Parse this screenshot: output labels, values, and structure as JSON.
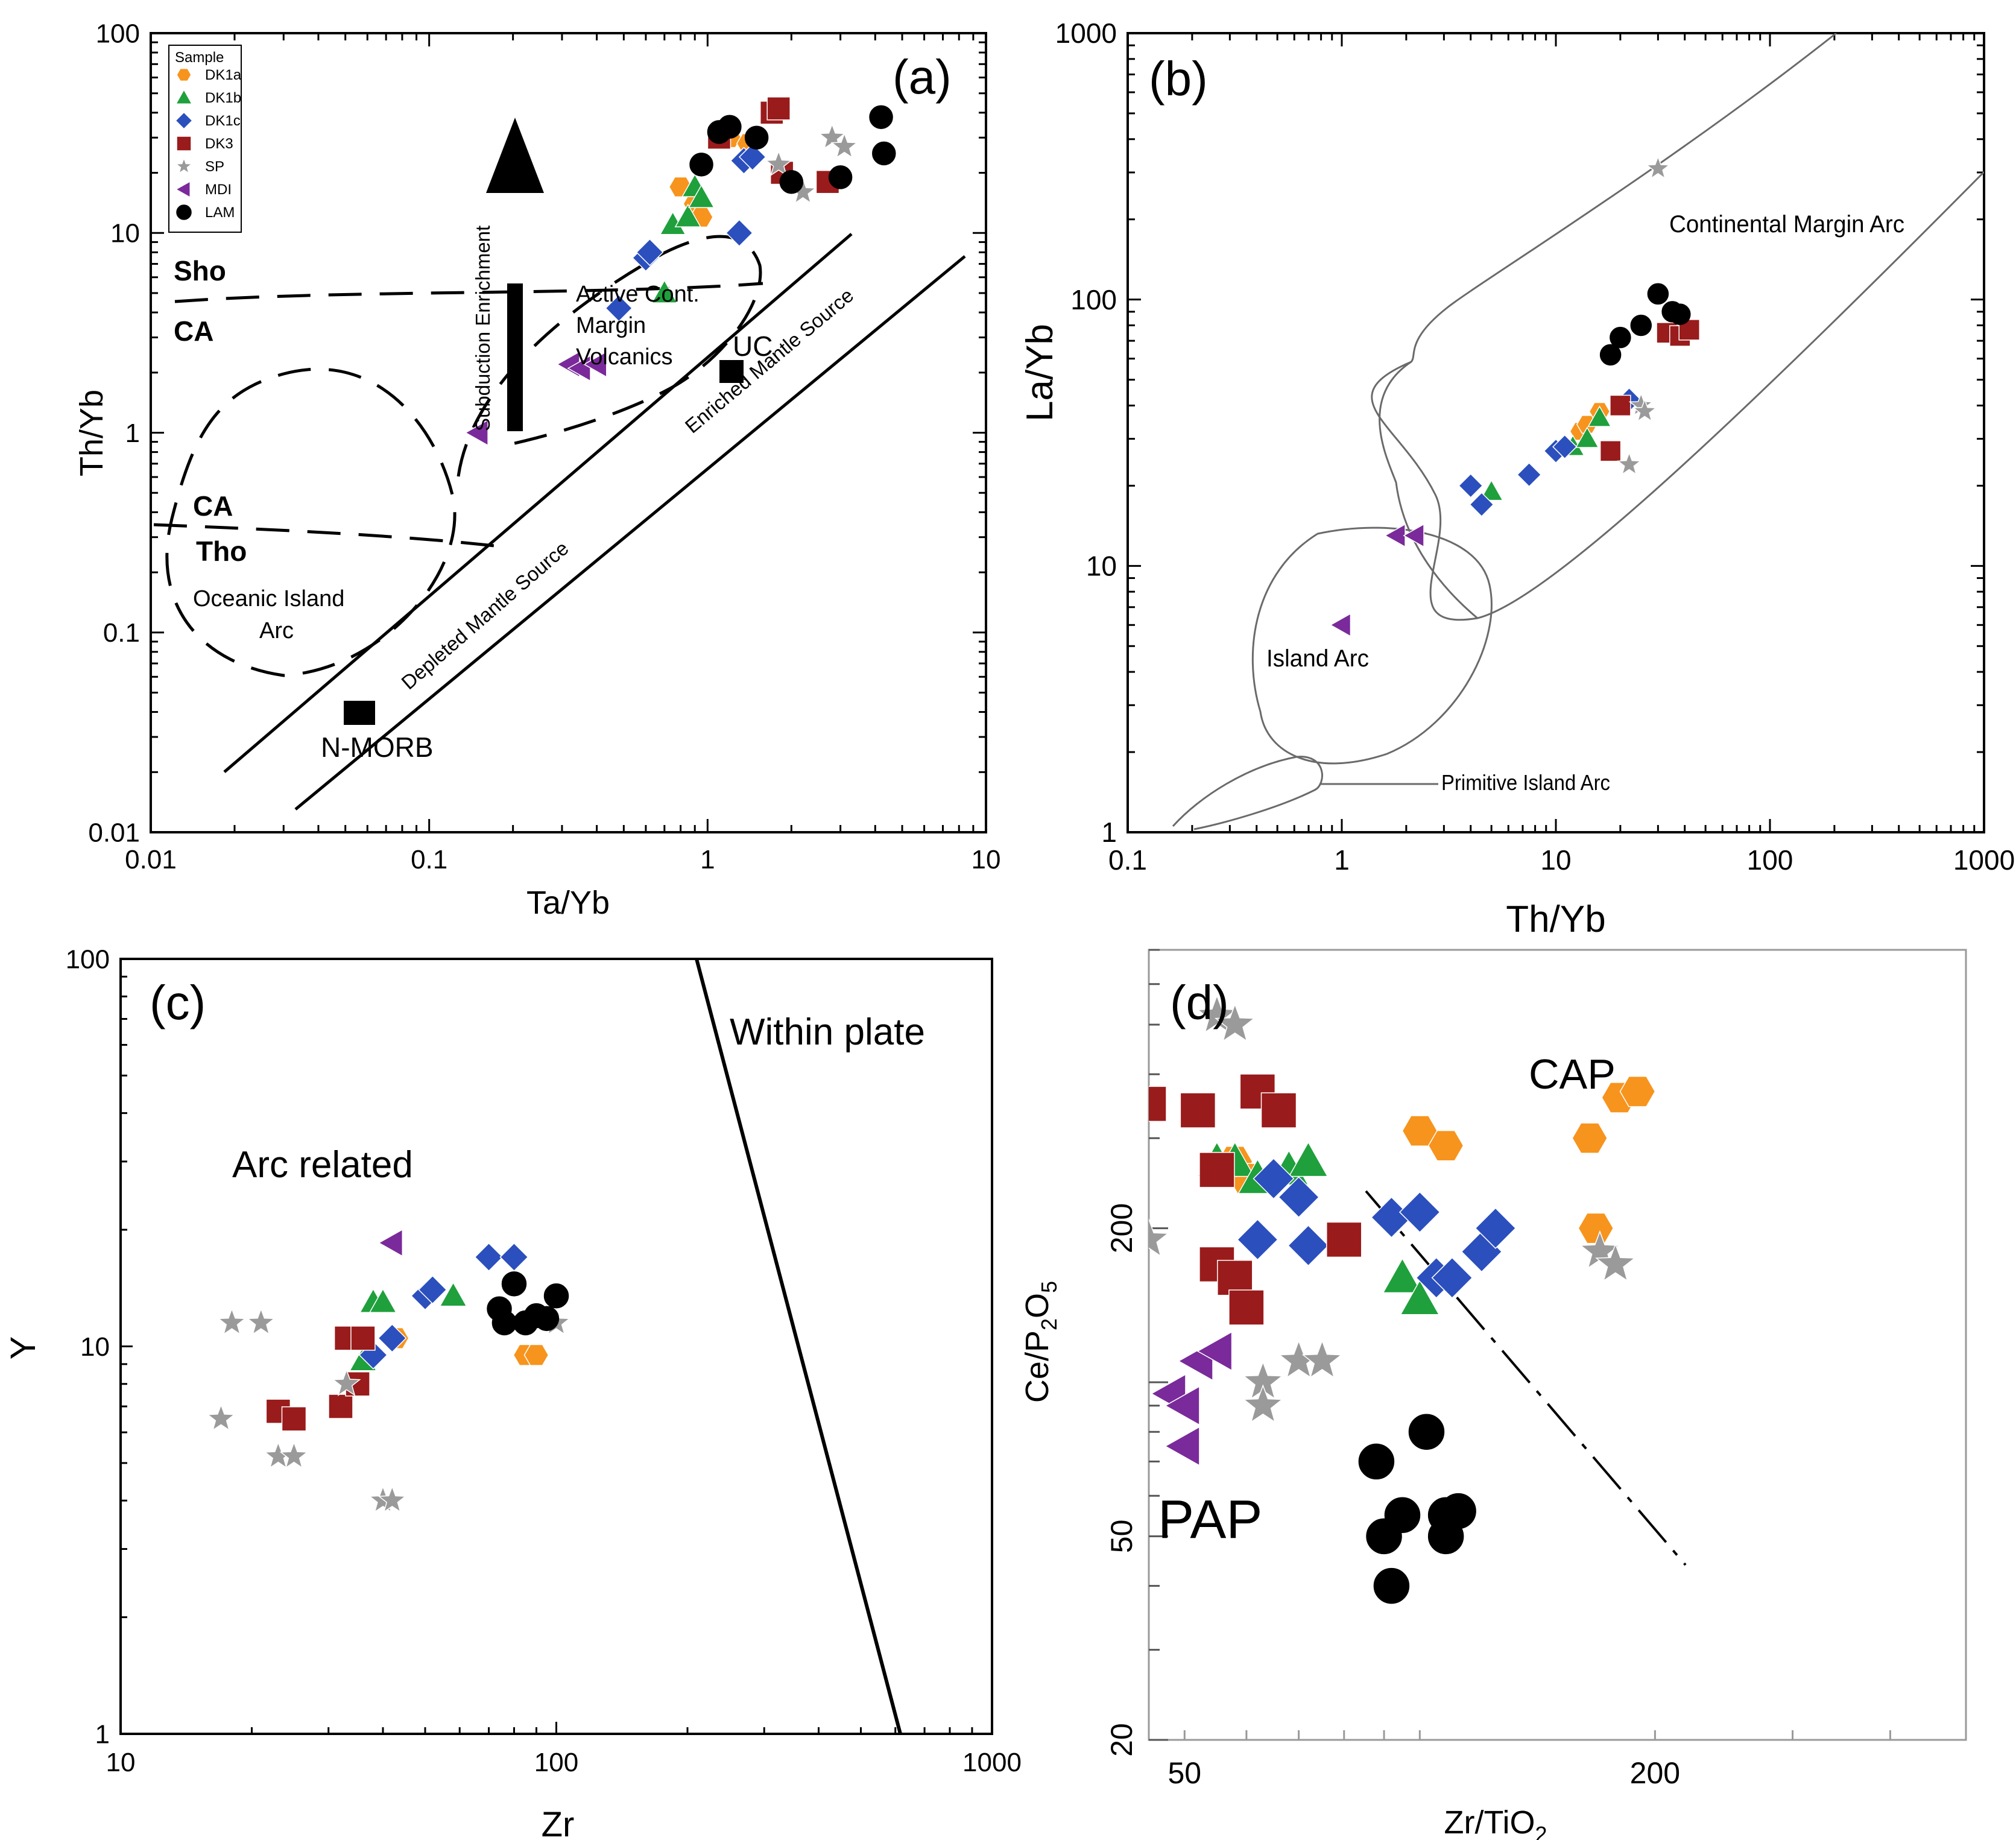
{
  "panels": {
    "a": {
      "label": "(a)",
      "xlabel": "Ta/Yb",
      "ylabel": "Th/Yb",
      "xticks": [
        "0.01",
        "0.1",
        "1",
        "10"
      ],
      "yticks": [
        "0.01",
        "0.1",
        "1",
        "10",
        "100"
      ],
      "legend_title": "Sample",
      "legend": [
        {
          "name": "DK1a",
          "color": "#f7941d",
          "shape": "hexagon"
        },
        {
          "name": "DK1b",
          "color": "#1fa03c",
          "shape": "triangle"
        },
        {
          "name": "DK1c",
          "color": "#2b4fbd",
          "shape": "diamond"
        },
        {
          "name": "DK3",
          "color": "#9a1b1b",
          "shape": "square"
        },
        {
          "name": "SP",
          "color": "#9a9a9a",
          "shape": "star"
        },
        {
          "name": "MDI",
          "color": "#7a2a9a",
          "shape": "triangle-left"
        },
        {
          "name": "LAM",
          "color": "#000000",
          "shape": "circle"
        }
      ],
      "labels": {
        "sho": "Sho",
        "ca_top": "CA",
        "ca_bot": "CA",
        "tho": "Tho",
        "oia1": "Oceanic Island",
        "oia2": "Arc",
        "acm1": "Active Cont.",
        "acm2": "Margin",
        "acm3": "Volcanics",
        "sub": "Subduction Enrichment",
        "dms": "Depleted Mantle Source",
        "ems": "Enriched Mantle Source",
        "nmorb": "N-MORB",
        "uc": "UC"
      }
    },
    "b": {
      "label": "(b)",
      "xlabel": "Th/Yb",
      "ylabel": "La/Yb",
      "xticks": [
        "0.1",
        "1",
        "10",
        "100",
        "1000"
      ],
      "yticks": [
        "1",
        "10",
        "100",
        "1000"
      ],
      "labels": {
        "cma": "Continental Margin Arc",
        "ia": "Island Arc",
        "pia": "Primitive Island Arc"
      }
    },
    "c": {
      "label": "(c)",
      "xlabel": "Zr",
      "ylabel": "Y",
      "xticks": [
        "10",
        "100",
        "1000"
      ],
      "yticks": [
        "1",
        "10",
        "100"
      ],
      "labels": {
        "within": "Within plate",
        "arc": "Arc related"
      }
    },
    "d": {
      "label": "(d)",
      "xlabel_main": "Zr/TiO",
      "xlabel_sub": "2",
      "ylabel_main": "Ce/P",
      "ylabel_sub1": "2",
      "ylabel_mid": "O",
      "ylabel_sub2": "5",
      "xticks": [
        "50",
        "200"
      ],
      "yticks": [
        "20",
        "50",
        "200"
      ],
      "labels": {
        "cap": "CAP",
        "pap": "PAP"
      }
    }
  },
  "chart_data": [
    {
      "type": "scatter",
      "panel": "a",
      "title": "(a)",
      "xlabel": "Ta/Yb",
      "ylabel": "Th/Yb",
      "xscale": "log",
      "yscale": "log",
      "xlim": [
        0.01,
        10
      ],
      "ylim": [
        0.01,
        100
      ],
      "legend": "top-left",
      "series": [
        {
          "name": "DK1a",
          "points": [
            [
              0.8,
              17
            ],
            [
              0.9,
              14
            ],
            [
              0.95,
              12
            ],
            [
              1.2,
              30
            ],
            [
              1.4,
              28
            ]
          ]
        },
        {
          "name": "DK1b",
          "points": [
            [
              0.7,
              5
            ],
            [
              0.75,
              11
            ],
            [
              0.85,
              12
            ],
            [
              0.9,
              17
            ],
            [
              0.95,
              15
            ]
          ]
        },
        {
          "name": "DK1c",
          "points": [
            [
              0.48,
              4.2
            ],
            [
              0.6,
              7.5
            ],
            [
              0.62,
              8
            ],
            [
              1.3,
              10
            ],
            [
              1.35,
              23
            ],
            [
              1.45,
              24
            ]
          ]
        },
        {
          "name": "DK3",
          "points": [
            [
              1.1,
              30
            ],
            [
              1.7,
              40
            ],
            [
              1.8,
              42
            ],
            [
              1.85,
              20
            ],
            [
              2.7,
              18
            ]
          ]
        },
        {
          "name": "SP",
          "points": [
            [
              1.8,
              22
            ],
            [
              2.2,
              16
            ],
            [
              2.8,
              30
            ],
            [
              3.1,
              27
            ]
          ]
        },
        {
          "name": "MDI",
          "points": [
            [
              0.15,
              1.0
            ],
            [
              0.32,
              2.2
            ],
            [
              0.35,
              2.1
            ],
            [
              0.4,
              2.2
            ]
          ]
        },
        {
          "name": "LAM",
          "points": [
            [
              0.95,
              22
            ],
            [
              1.1,
              32
            ],
            [
              1.2,
              34
            ],
            [
              1.5,
              30
            ],
            [
              2.0,
              18
            ],
            [
              3.0,
              19
            ],
            [
              4.2,
              38
            ],
            [
              4.3,
              25
            ]
          ]
        }
      ]
    },
    {
      "type": "scatter",
      "panel": "b",
      "title": "(b)",
      "xlabel": "Th/Yb",
      "ylabel": "La/Yb",
      "xscale": "log",
      "yscale": "log",
      "xlim": [
        0.1,
        1000
      ],
      "ylim": [
        1,
        1000
      ],
      "series": [
        {
          "name": "DK1a",
          "points": [
            [
              13,
              32
            ],
            [
              14,
              34
            ],
            [
              16,
              38
            ]
          ]
        },
        {
          "name": "DK1b",
          "points": [
            [
              5,
              19
            ],
            [
              12,
              28
            ],
            [
              14,
              30
            ],
            [
              16,
              36
            ]
          ]
        },
        {
          "name": "DK1c",
          "points": [
            [
              4,
              20
            ],
            [
              4.5,
              17
            ],
            [
              7.5,
              22
            ],
            [
              10,
              27
            ],
            [
              11,
              28
            ],
            [
              22,
              42
            ]
          ]
        },
        {
          "name": "DK3",
          "points": [
            [
              18,
              27
            ],
            [
              20,
              40
            ],
            [
              33,
              75
            ],
            [
              38,
              73
            ],
            [
              42,
              77
            ]
          ]
        },
        {
          "name": "SP",
          "points": [
            [
              22,
              24
            ],
            [
              25,
              40
            ],
            [
              26,
              38
            ],
            [
              30,
              310
            ]
          ]
        },
        {
          "name": "MDI",
          "points": [
            [
              1.0,
              6
            ],
            [
              1.8,
              13
            ],
            [
              2.2,
              13
            ]
          ]
        },
        {
          "name": "LAM",
          "points": [
            [
              18,
              62
            ],
            [
              20,
              72
            ],
            [
              25,
              80
            ],
            [
              30,
              105
            ],
            [
              35,
              90
            ],
            [
              38,
              88
            ]
          ]
        }
      ]
    },
    {
      "type": "scatter",
      "panel": "c",
      "title": "(c)",
      "xlabel": "Zr",
      "ylabel": "Y",
      "xscale": "log",
      "yscale": "log",
      "xlim": [
        10,
        1000
      ],
      "ylim": [
        1,
        100
      ],
      "series": [
        {
          "name": "DK1a",
          "points": [
            [
              43,
              10.5
            ],
            [
              85,
              9.5
            ],
            [
              90,
              9.5
            ]
          ]
        },
        {
          "name": "DK1b",
          "points": [
            [
              36,
              9.2
            ],
            [
              38,
              13
            ],
            [
              40,
              13
            ],
            [
              58,
              13.5
            ]
          ]
        },
        {
          "name": "DK1c",
          "points": [
            [
              38,
              9.5
            ],
            [
              42,
              10.5
            ],
            [
              50,
              13.5
            ],
            [
              52,
              14
            ],
            [
              70,
              17
            ],
            [
              80,
              17
            ]
          ]
        },
        {
          "name": "DK3",
          "points": [
            [
              23,
              6.8
            ],
            [
              25,
              6.5
            ],
            [
              32,
              7
            ],
            [
              33,
              10.5
            ],
            [
              35,
              8
            ],
            [
              36,
              10.5
            ]
          ]
        },
        {
          "name": "SP",
          "points": [
            [
              17,
              6.5
            ],
            [
              18,
              11.5
            ],
            [
              21,
              11.5
            ],
            [
              23,
              5.2
            ],
            [
              25,
              5.2
            ],
            [
              33,
              8
            ],
            [
              40,
              4
            ],
            [
              42,
              4
            ],
            [
              100,
              11.5
            ]
          ]
        },
        {
          "name": "MDI",
          "points": [
            [
              42,
              18.5
            ]
          ]
        },
        {
          "name": "LAM",
          "points": [
            [
              74,
              12.5
            ],
            [
              76,
              11.5
            ],
            [
              80,
              14.5
            ],
            [
              85,
              11.5
            ],
            [
              90,
              12
            ],
            [
              95,
              11.8
            ],
            [
              100,
              13.5
            ]
          ]
        }
      ]
    },
    {
      "type": "scatter",
      "panel": "d",
      "title": "(d)",
      "xlabel": "Zr/TiO2",
      "ylabel": "Ce/P2O5",
      "xscale": "log",
      "yscale": "log",
      "xlim": [
        45,
        500
      ],
      "ylim": [
        20,
        700
      ],
      "series": [
        {
          "name": "DK1a",
          "points": [
            [
              58,
              270
            ],
            [
              60,
              250
            ],
            [
              100,
              310
            ],
            [
              108,
              290
            ],
            [
              165,
              300
            ],
            [
              168,
              200
            ],
            [
              180,
              360
            ],
            [
              190,
              370
            ]
          ]
        },
        {
          "name": "DK1b",
          "points": [
            [
              55,
              270
            ],
            [
              58,
              270
            ],
            [
              62,
              250
            ],
            [
              68,
              260
            ],
            [
              72,
              270
            ],
            [
              95,
              160
            ],
            [
              100,
              145
            ]
          ]
        },
        {
          "name": "DK1c",
          "points": [
            [
              62,
              190
            ],
            [
              65,
              250
            ],
            [
              70,
              230
            ],
            [
              72,
              185
            ],
            [
              92,
              210
            ],
            [
              100,
              215
            ],
            [
              105,
              160
            ],
            [
              110,
              160
            ],
            [
              120,
              180
            ],
            [
              125,
              200
            ]
          ]
        },
        {
          "name": "DK3",
          "points": [
            [
              45,
              350
            ],
            [
              52,
              340
            ],
            [
              55,
              260
            ],
            [
              55,
              170
            ],
            [
              58,
              160
            ],
            [
              60,
              140
            ],
            [
              62,
              370
            ],
            [
              66,
              340
            ],
            [
              80,
              190
            ]
          ]
        },
        {
          "name": "SP",
          "points": [
            [
              45,
              190
            ],
            [
              55,
              520
            ],
            [
              58,
              500
            ],
            [
              63,
              100
            ],
            [
              63,
              90
            ],
            [
              70,
              110
            ],
            [
              75,
              110
            ],
            [
              170,
              180
            ],
            [
              178,
              170
            ]
          ]
        },
        {
          "name": "MDI",
          "points": [
            [
              48,
              95
            ],
            [
              50,
              90
            ],
            [
              50,
              75
            ],
            [
              52,
              110
            ],
            [
              55,
              115
            ]
          ]
        },
        {
          "name": "LAM",
          "points": [
            [
              88,
              70
            ],
            [
              90,
              50
            ],
            [
              92,
              40
            ],
            [
              95,
              55
            ],
            [
              102,
              80
            ],
            [
              108,
              55
            ],
            [
              108,
              50
            ],
            [
              112,
              56
            ]
          ]
        }
      ]
    }
  ]
}
